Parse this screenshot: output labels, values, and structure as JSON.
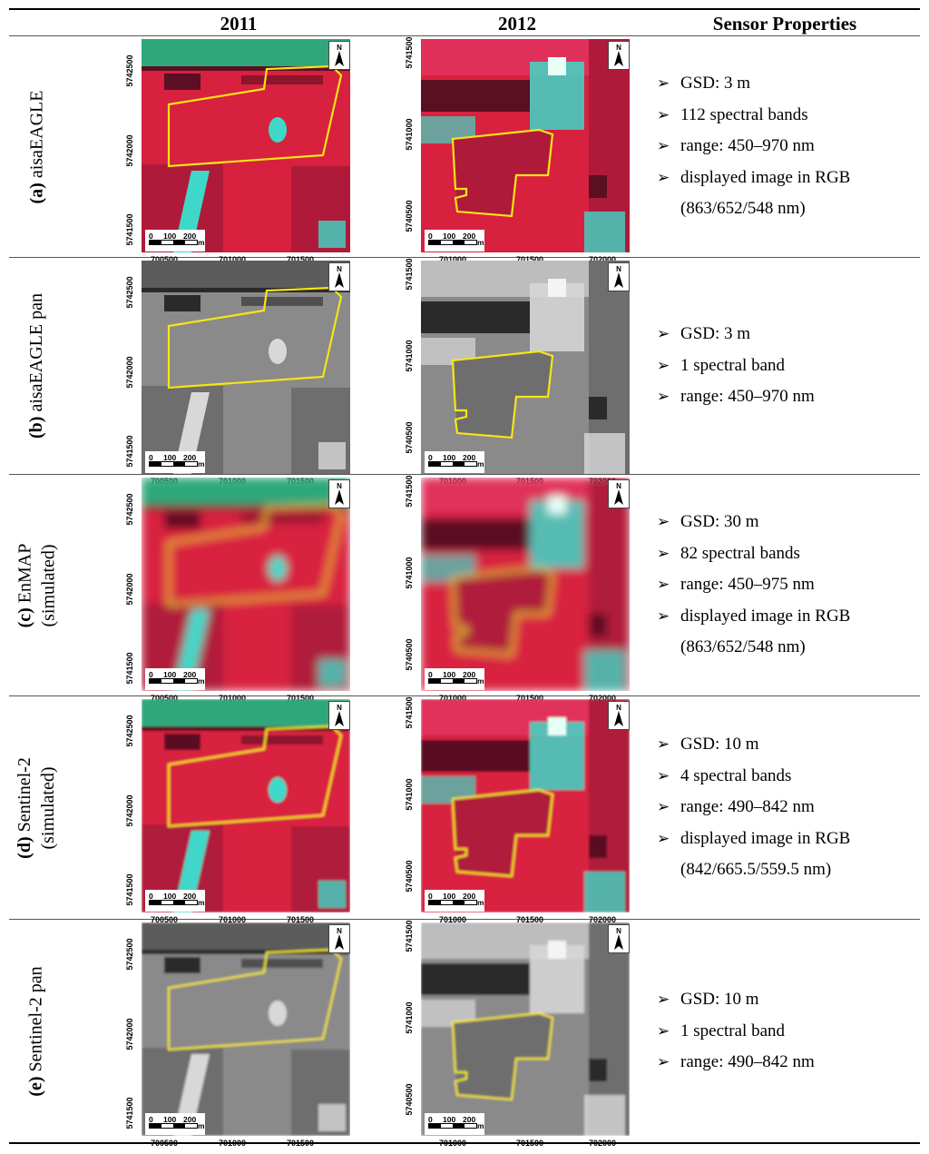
{
  "header": {
    "col_2011": "2011",
    "col_2012": "2012",
    "col_props": "Sensor Properties"
  },
  "colors": {
    "cir_red": "#d8203f",
    "cir_cyan": "#3fd8c8",
    "boundary_yellow": "#f5e614"
  },
  "map_labels": {
    "north": "N",
    "scale_0": "0",
    "scale_100": "100",
    "scale_200": "200",
    "scale_unit": "m",
    "y2011": [
      "5742500",
      "5742000",
      "5741500"
    ],
    "x2011": [
      "700500",
      "701000",
      "701500"
    ],
    "y2012": [
      "5741500",
      "5741000",
      "5740500"
    ],
    "x2012": [
      "701000",
      "701500",
      "702000"
    ]
  },
  "rows": [
    {
      "letter": "(a)",
      "label": "aisaEAGLE",
      "label2": "",
      "style": "cir",
      "blur": 0,
      "props": [
        "GSD: 3 m",
        "112 spectral bands",
        "range: 450–970 nm",
        "displayed image in RGB"
      ],
      "props_cont": "(863/652/548 nm)"
    },
    {
      "letter": "(b)",
      "label": "aisaEAGLE pan",
      "label2": "",
      "style": "pan",
      "blur": 0,
      "props": [
        "GSD: 3 m",
        "1 spectral band",
        "range: 450–970 nm"
      ],
      "props_cont": ""
    },
    {
      "letter": "(c)",
      "label": "EnMAP",
      "label2": "(simulated)",
      "style": "cir",
      "blur": 5,
      "props": [
        "GSD: 30 m",
        "82 spectral bands",
        "range: 450–975 nm",
        "displayed image in RGB"
      ],
      "props_cont": "(863/652/548 nm)"
    },
    {
      "letter": "(d)",
      "label": "Sentinel-2",
      "label2": "(simulated)",
      "style": "cir",
      "blur": 1.2,
      "props": [
        "GSD: 10 m",
        "4 spectral bands",
        "range: 490–842 nm",
        "displayed image in RGB"
      ],
      "props_cont": "(842/665.5/559.5 nm)"
    },
    {
      "letter": "(e)",
      "label": "Sentinel-2 pan",
      "label2": "",
      "style": "pan",
      "blur": 1.2,
      "props": [
        "GSD: 10 m",
        "1 spectral band",
        "range: 490–842 nm"
      ],
      "props_cont": ""
    }
  ]
}
